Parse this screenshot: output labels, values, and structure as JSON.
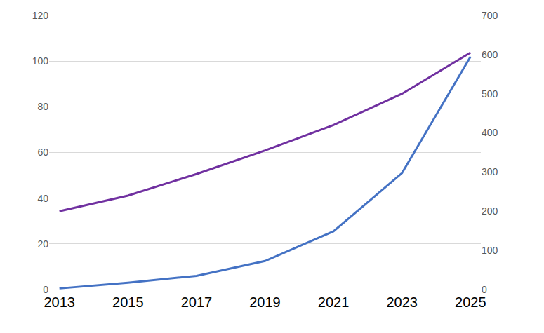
{
  "chart_data": {
    "type": "line",
    "categories": [
      "2013",
      "2015",
      "2017",
      "2019",
      "2021",
      "2023",
      "2025"
    ],
    "series": [
      {
        "color": "#4472c4",
        "axis": "y",
        "values": [
          0.5,
          3,
          6,
          12.5,
          25.5,
          51,
          102
        ]
      },
      {
        "color": "#7030a0",
        "axis": "y2",
        "values": [
          200,
          240,
          295,
          355,
          420,
          500,
          605
        ]
      }
    ],
    "ylim": [
      0,
      120
    ],
    "yticks": [
      0,
      20,
      40,
      60,
      80,
      100,
      120
    ],
    "y2lim": [
      0,
      700
    ],
    "y2ticks": [
      0,
      100,
      200,
      300,
      400,
      500,
      600,
      700
    ],
    "grid": true,
    "legend": false
  }
}
